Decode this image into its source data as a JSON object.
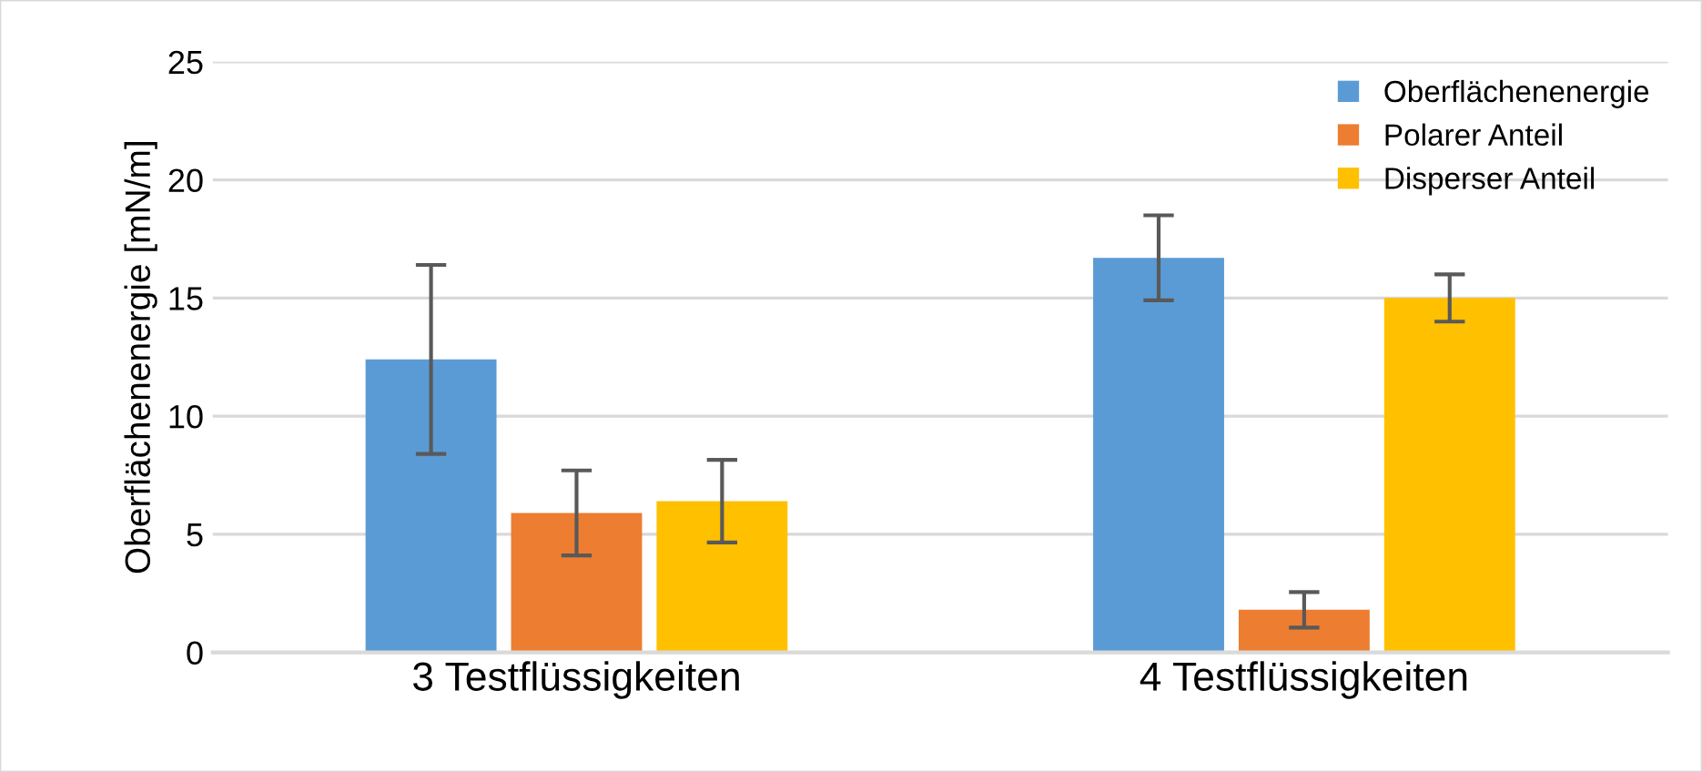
{
  "chart_data": {
    "type": "bar",
    "ylabel": "Oberflächenenergie [mN/m]",
    "categories": [
      "3 Testflüssigkeiten",
      "4 Testflüssigkeiten"
    ],
    "series": [
      {
        "name": "Oberflächenenergie",
        "color": "#5b9bd5",
        "values": [
          12.4,
          16.7
        ],
        "errors": [
          4.0,
          1.8
        ]
      },
      {
        "name": "Polarer Anteil",
        "color": "#ed7d31",
        "values": [
          5.9,
          1.8
        ],
        "errors": [
          1.8,
          0.75
        ]
      },
      {
        "name": "Disperser Anteil",
        "color": "#ffc000",
        "values": [
          6.4,
          15.0
        ],
        "errors": [
          1.75,
          1.0
        ]
      }
    ],
    "ylim": [
      0,
      25
    ],
    "yticks": [
      0,
      5,
      10,
      15,
      20,
      25
    ],
    "grid": "y",
    "legend": "top right"
  }
}
